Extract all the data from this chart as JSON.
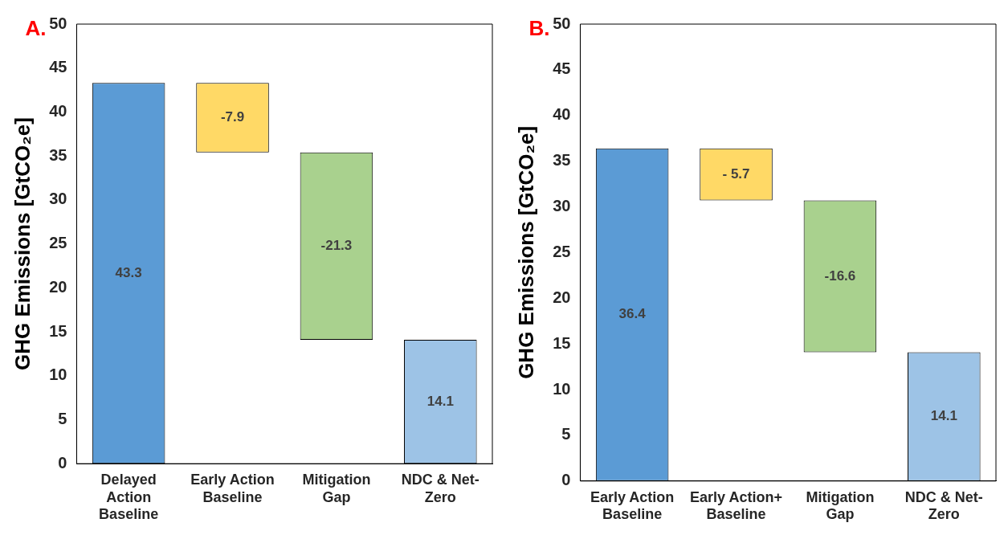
{
  "chart_data": [
    {
      "type": "bar",
      "title": "A.",
      "ylabel": "GHG Emissions [GtCO₂e]",
      "categories": [
        "Delayed Action Baseline",
        "Early Action Baseline",
        "Mitigation Gap",
        "NDC & Net-Zero"
      ],
      "values": [
        43.3,
        -7.9,
        -21.3,
        14.1
      ],
      "base": [
        0,
        43.3,
        35.4,
        0
      ],
      "colors": [
        "#5b9bd5",
        "#ffd966",
        "#a9d18e",
        "#9dc3e6"
      ],
      "value_labels": [
        "43.3",
        "-7.9",
        "-21.3",
        "14.1"
      ],
      "ylim": [
        0,
        50
      ],
      "yticks": [
        0,
        5,
        10,
        15,
        20,
        25,
        30,
        35,
        40,
        45,
        50
      ],
      "grid": false,
      "legend": false
    },
    {
      "type": "bar",
      "title": "B.",
      "ylabel": "GHG Emissions [GtCO₂e]",
      "categories": [
        "Early Action Baseline",
        "Early Action+ Baseline",
        "Mitigation Gap",
        "NDC & Net-Zero"
      ],
      "values": [
        36.4,
        -5.7,
        -16.6,
        14.1
      ],
      "base": [
        0,
        36.4,
        30.7,
        0
      ],
      "colors": [
        "#5b9bd5",
        "#ffd966",
        "#a9d18e",
        "#9dc3e6"
      ],
      "value_labels": [
        "36.4",
        "- 5.7",
        "-16.6",
        "14.1"
      ],
      "ylim": [
        0,
        50
      ],
      "yticks": [
        0,
        5,
        10,
        15,
        20,
        25,
        30,
        35,
        40,
        45,
        50
      ],
      "grid": false,
      "legend": false
    }
  ]
}
